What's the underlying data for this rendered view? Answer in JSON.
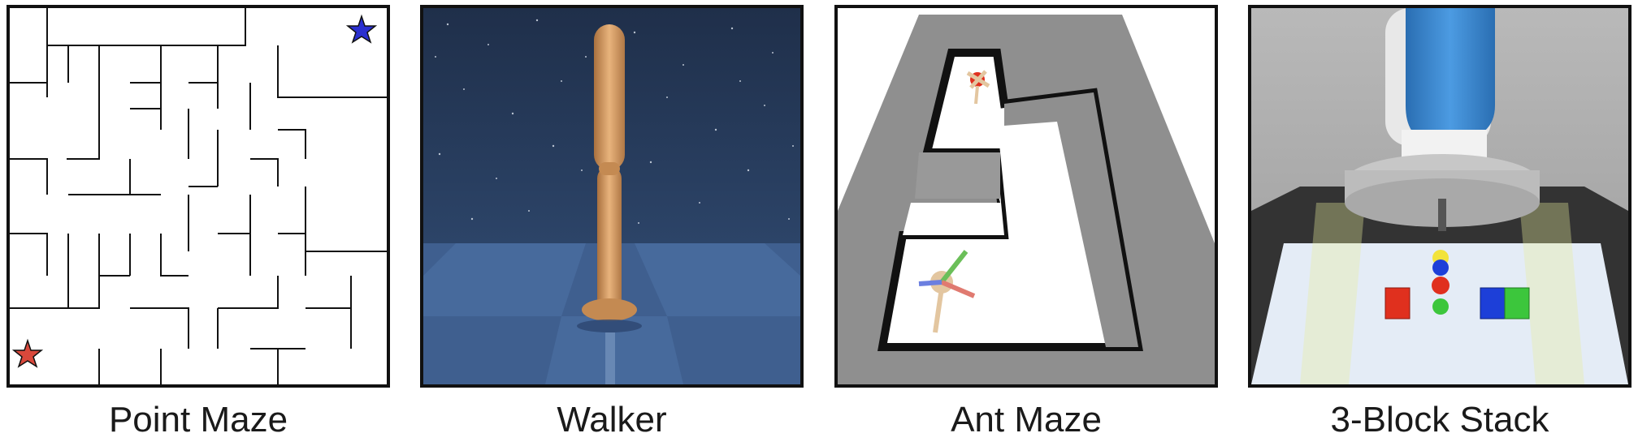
{
  "panels": [
    {
      "id": "point-maze",
      "caption": "Point Maze",
      "start_marker": "red-star",
      "goal_marker": "blue-star",
      "colors": {
        "walls": "#111111",
        "background": "#ffffff",
        "start": "#d9483b",
        "goal": "#2a2fd0"
      }
    },
    {
      "id": "walker",
      "caption": "Walker",
      "colors": {
        "sky": "#1f2f4a",
        "floor": "#3f5f8f",
        "body": "#d9a066"
      }
    },
    {
      "id": "ant-maze",
      "caption": "Ant Maze",
      "colors": {
        "wall": "#8f8f8f",
        "floor": "#ffffff",
        "edge": "#111111"
      }
    },
    {
      "id": "three-block-stack",
      "caption": "3-Block Stack",
      "colors": {
        "table": "#e4ecf6",
        "robot": "#3f8fd6",
        "block_red": "#e0301e",
        "block_blue": "#1d3fd8",
        "block_green": "#3cc63c"
      }
    }
  ]
}
